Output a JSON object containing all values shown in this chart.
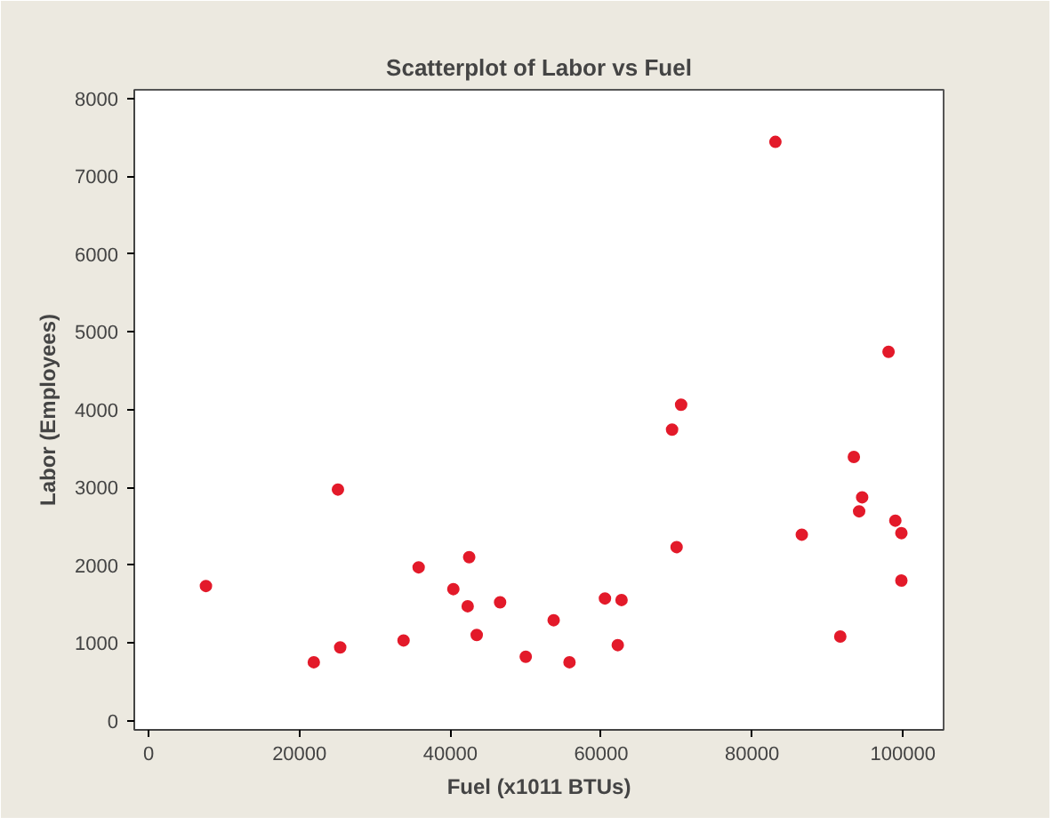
{
  "chart_data": {
    "type": "scatter",
    "title": "Scatterplot of Labor vs Fuel",
    "xlabel": "Fuel (x1011 BTUs)",
    "ylabel": "Labor (Employees)",
    "x": [
      7600,
      21900,
      25100,
      25400,
      33800,
      35800,
      40400,
      42300,
      42500,
      43500,
      46600,
      50000,
      53700,
      55800,
      60500,
      62200,
      62700,
      69400,
      70000,
      70600,
      83100,
      86600,
      91700,
      93500,
      94200,
      94600,
      98100,
      99000,
      99800,
      99800
    ],
    "series": [
      {
        "color": "#e31a2a",
        "values": [
          1730,
          750,
          2970,
          940,
          1030,
          1970,
          1690,
          1470,
          2100,
          1100,
          1520,
          820,
          1290,
          750,
          1570,
          970,
          1550,
          3740,
          2230,
          4060,
          7440,
          2390,
          1080,
          3390,
          2690,
          2870,
          4740,
          2570,
          2410,
          1800
        ]
      }
    ],
    "xlim": [
      -1900,
      105400
    ],
    "xticks": [
      0,
      20000,
      40000,
      60000,
      80000,
      100000
    ],
    "ylim": [
      -120,
      8110
    ],
    "yticks": [
      0,
      1000,
      2000,
      3000,
      4000,
      5000,
      6000,
      7000,
      8000
    ],
    "marker": "circle",
    "grid": false
  }
}
